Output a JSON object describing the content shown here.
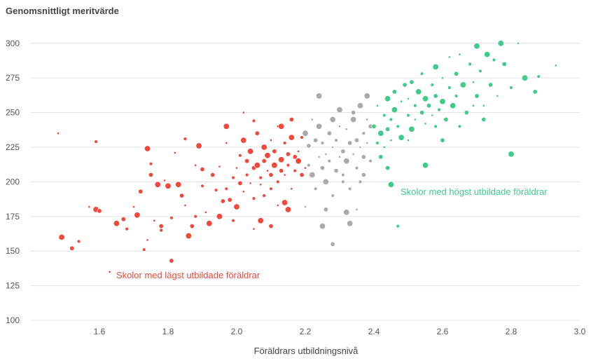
{
  "chart_data": {
    "type": "scatter",
    "title": "",
    "ylabel": "Genomsnittligt meritvärde",
    "xlabel": "Föräldrars utbildningsnivå",
    "xlim": [
      1.4,
      3.0
    ],
    "ylim": [
      100,
      310
    ],
    "xticks": [
      "1.6",
      "1.8",
      "2.0",
      "2.2",
      "2.4",
      "2.6",
      "2.8",
      "3.0"
    ],
    "yticks": [
      "100",
      "125",
      "150",
      "175",
      "200",
      "225",
      "250",
      "275",
      "300"
    ],
    "grid": true,
    "annotations": [
      {
        "text": "Skolor med lägst utbildade föräldrar",
        "color": "#f0483a"
      },
      {
        "text": "Skolor med högst utbildade föräldrar",
        "color": "#3fcc8a"
      }
    ],
    "series": [
      {
        "color": "#f0483a",
        "points": [
          [
            1.48,
            235
          ],
          [
            1.49,
            160
          ],
          [
            1.52,
            152
          ],
          [
            1.54,
            157
          ],
          [
            1.57,
            182
          ],
          [
            1.59,
            180
          ],
          [
            1.6,
            179
          ],
          [
            1.59,
            229
          ],
          [
            1.63,
            135
          ],
          [
            1.65,
            170
          ],
          [
            1.67,
            173
          ],
          [
            1.68,
            166
          ],
          [
            1.7,
            182
          ],
          [
            1.71,
            176
          ],
          [
            1.72,
            193
          ],
          [
            1.73,
            151
          ],
          [
            1.74,
            158
          ],
          [
            1.74,
            224
          ],
          [
            1.75,
            205
          ],
          [
            1.75,
            213
          ],
          [
            1.76,
            172
          ],
          [
            1.77,
            198
          ],
          [
            1.78,
            168
          ],
          [
            1.78,
            165
          ],
          [
            1.79,
            201
          ],
          [
            1.8,
            197
          ],
          [
            1.81,
            143
          ],
          [
            1.81,
            174
          ],
          [
            1.82,
            221
          ],
          [
            1.83,
            198
          ],
          [
            1.84,
            190
          ],
          [
            1.85,
            231
          ],
          [
            1.85,
            183
          ],
          [
            1.86,
            161
          ],
          [
            1.87,
            168
          ],
          [
            1.88,
            175
          ],
          [
            1.88,
            212
          ],
          [
            1.89,
            226
          ],
          [
            1.9,
            209
          ],
          [
            1.9,
            197
          ],
          [
            1.91,
            178
          ],
          [
            1.92,
            170
          ],
          [
            1.93,
            205
          ],
          [
            1.94,
            194
          ],
          [
            1.95,
            211
          ],
          [
            1.95,
            175
          ],
          [
            1.96,
            186
          ],
          [
            1.97,
            195
          ],
          [
            1.97,
            228
          ],
          [
            1.97,
            240
          ],
          [
            1.98,
            187
          ],
          [
            1.99,
            203
          ],
          [
            2.0,
            210
          ],
          [
            2.0,
            182
          ],
          [
            2.01,
            199
          ],
          [
            2.01,
            219
          ],
          [
            2.02,
            193
          ],
          [
            2.02,
            230
          ],
          [
            2.03,
            215
          ],
          [
            2.03,
            205
          ],
          [
            2.04,
            199
          ],
          [
            2.04,
            222
          ],
          [
            2.05,
            210
          ],
          [
            2.05,
            188
          ],
          [
            2.05,
            166
          ],
          [
            2.06,
            212
          ],
          [
            2.06,
            235
          ],
          [
            2.07,
            203
          ],
          [
            2.07,
            198
          ],
          [
            2.08,
            225
          ],
          [
            2.08,
            215
          ],
          [
            2.08,
            190
          ],
          [
            2.09,
            208
          ],
          [
            2.09,
            219
          ],
          [
            2.1,
            205
          ],
          [
            2.1,
            195
          ],
          [
            2.1,
            230
          ],
          [
            2.11,
            212
          ],
          [
            2.11,
            222
          ],
          [
            2.12,
            200
          ],
          [
            2.12,
            240
          ],
          [
            2.13,
            216
          ],
          [
            2.13,
            208
          ],
          [
            2.14,
            228
          ],
          [
            2.14,
            205
          ],
          [
            2.14,
            185
          ],
          [
            2.15,
            220
          ],
          [
            2.15,
            212
          ],
          [
            2.16,
            195
          ],
          [
            2.16,
            232
          ],
          [
            2.17,
            218
          ],
          [
            2.17,
            208
          ],
          [
            2.18,
            222
          ],
          [
            2.18,
            215
          ],
          [
            2.19,
            205
          ],
          [
            2.19,
            232
          ],
          [
            2.2,
            210
          ],
          [
            2.15,
            180
          ],
          [
            2.1,
            168
          ],
          [
            2.05,
            244
          ],
          [
            2.02,
            250
          ],
          [
            2.13,
            240
          ],
          [
            2.16,
            245
          ],
          [
            1.99,
            172
          ],
          [
            2.12,
            183
          ],
          [
            2.07,
            172
          ]
        ]
      },
      {
        "color": "#aaaaaa",
        "points": [
          [
            2.2,
            235
          ],
          [
            2.21,
            226
          ],
          [
            2.21,
            212
          ],
          [
            2.22,
            245
          ],
          [
            2.22,
            205
          ],
          [
            2.23,
            230
          ],
          [
            2.23,
            195
          ],
          [
            2.24,
            218
          ],
          [
            2.24,
            240
          ],
          [
            2.25,
            210
          ],
          [
            2.25,
            228
          ],
          [
            2.26,
            220
          ],
          [
            2.26,
            200
          ],
          [
            2.27,
            235
          ],
          [
            2.27,
            215
          ],
          [
            2.28,
            225
          ],
          [
            2.28,
            245
          ],
          [
            2.29,
            208
          ],
          [
            2.29,
            230
          ],
          [
            2.3,
            218
          ],
          [
            2.3,
            252
          ],
          [
            2.31,
            222
          ],
          [
            2.31,
            205
          ],
          [
            2.32,
            238
          ],
          [
            2.32,
            215
          ],
          [
            2.33,
            228
          ],
          [
            2.33,
            195
          ],
          [
            2.34,
            220
          ],
          [
            2.34,
            245
          ],
          [
            2.35,
            230
          ],
          [
            2.35,
            210
          ],
          [
            2.36,
            225
          ],
          [
            2.36,
            255
          ],
          [
            2.37,
            218
          ],
          [
            2.37,
            235
          ],
          [
            2.38,
            228
          ],
          [
            2.38,
            262
          ],
          [
            2.39,
            240
          ],
          [
            2.39,
            215
          ],
          [
            2.2,
            182
          ],
          [
            2.24,
            262
          ],
          [
            2.26,
            180
          ],
          [
            2.28,
            190
          ],
          [
            2.3,
            240
          ],
          [
            2.32,
            178
          ],
          [
            2.34,
            250
          ],
          [
            2.36,
            200
          ],
          [
            2.38,
            245
          ],
          [
            2.25,
            168
          ],
          [
            2.28,
            155
          ],
          [
            2.31,
            200
          ],
          [
            2.35,
            180
          ],
          [
            2.33,
            170
          ],
          [
            2.37,
            205
          ]
        ]
      },
      {
        "color": "#3fcc8a",
        "points": [
          [
            2.4,
            240
          ],
          [
            2.41,
            228
          ],
          [
            2.41,
            255
          ],
          [
            2.42,
            235
          ],
          [
            2.42,
            218
          ],
          [
            2.43,
            248
          ],
          [
            2.43,
            225
          ],
          [
            2.44,
            260
          ],
          [
            2.44,
            238
          ],
          [
            2.45,
            245
          ],
          [
            2.45,
            230
          ],
          [
            2.46,
            252
          ],
          [
            2.46,
            265
          ],
          [
            2.47,
            240
          ],
          [
            2.48,
            258
          ],
          [
            2.48,
            232
          ],
          [
            2.49,
            270
          ],
          [
            2.5,
            248
          ],
          [
            2.5,
            260
          ],
          [
            2.51,
            238
          ],
          [
            2.51,
            272
          ],
          [
            2.52,
            255
          ],
          [
            2.52,
            245
          ],
          [
            2.53,
            265
          ],
          [
            2.54,
            250
          ],
          [
            2.54,
            278
          ],
          [
            2.55,
            242
          ],
          [
            2.55,
            260
          ],
          [
            2.56,
            255
          ],
          [
            2.57,
            270
          ],
          [
            2.57,
            248
          ],
          [
            2.58,
            283
          ],
          [
            2.58,
            262
          ],
          [
            2.59,
            252
          ],
          [
            2.6,
            275
          ],
          [
            2.6,
            258
          ],
          [
            2.61,
            245
          ],
          [
            2.62,
            268
          ],
          [
            2.62,
            290
          ],
          [
            2.63,
            255
          ],
          [
            2.64,
            278
          ],
          [
            2.64,
            262
          ],
          [
            2.65,
            292
          ],
          [
            2.66,
            270
          ],
          [
            2.67,
            250
          ],
          [
            2.68,
            285
          ],
          [
            2.69,
            272
          ],
          [
            2.7,
            298
          ],
          [
            2.7,
            262
          ],
          [
            2.71,
            280
          ],
          [
            2.72,
            255
          ],
          [
            2.73,
            292
          ],
          [
            2.74,
            270
          ],
          [
            2.75,
            288
          ],
          [
            2.76,
            262
          ],
          [
            2.77,
            300
          ],
          [
            2.78,
            285
          ],
          [
            2.8,
            268
          ],
          [
            2.82,
            300
          ],
          [
            2.84,
            275
          ],
          [
            2.87,
            265
          ],
          [
            2.88,
            276
          ],
          [
            2.93,
            284
          ],
          [
            2.45,
            198
          ],
          [
            2.44,
            210
          ],
          [
            2.47,
            168
          ],
          [
            2.5,
            230
          ],
          [
            2.55,
            212
          ],
          [
            2.6,
            230
          ],
          [
            2.65,
            240
          ],
          [
            2.69,
            255
          ],
          [
            2.8,
            220
          ],
          [
            2.72,
            245
          ],
          [
            2.58,
            240
          ]
        ]
      }
    ]
  }
}
